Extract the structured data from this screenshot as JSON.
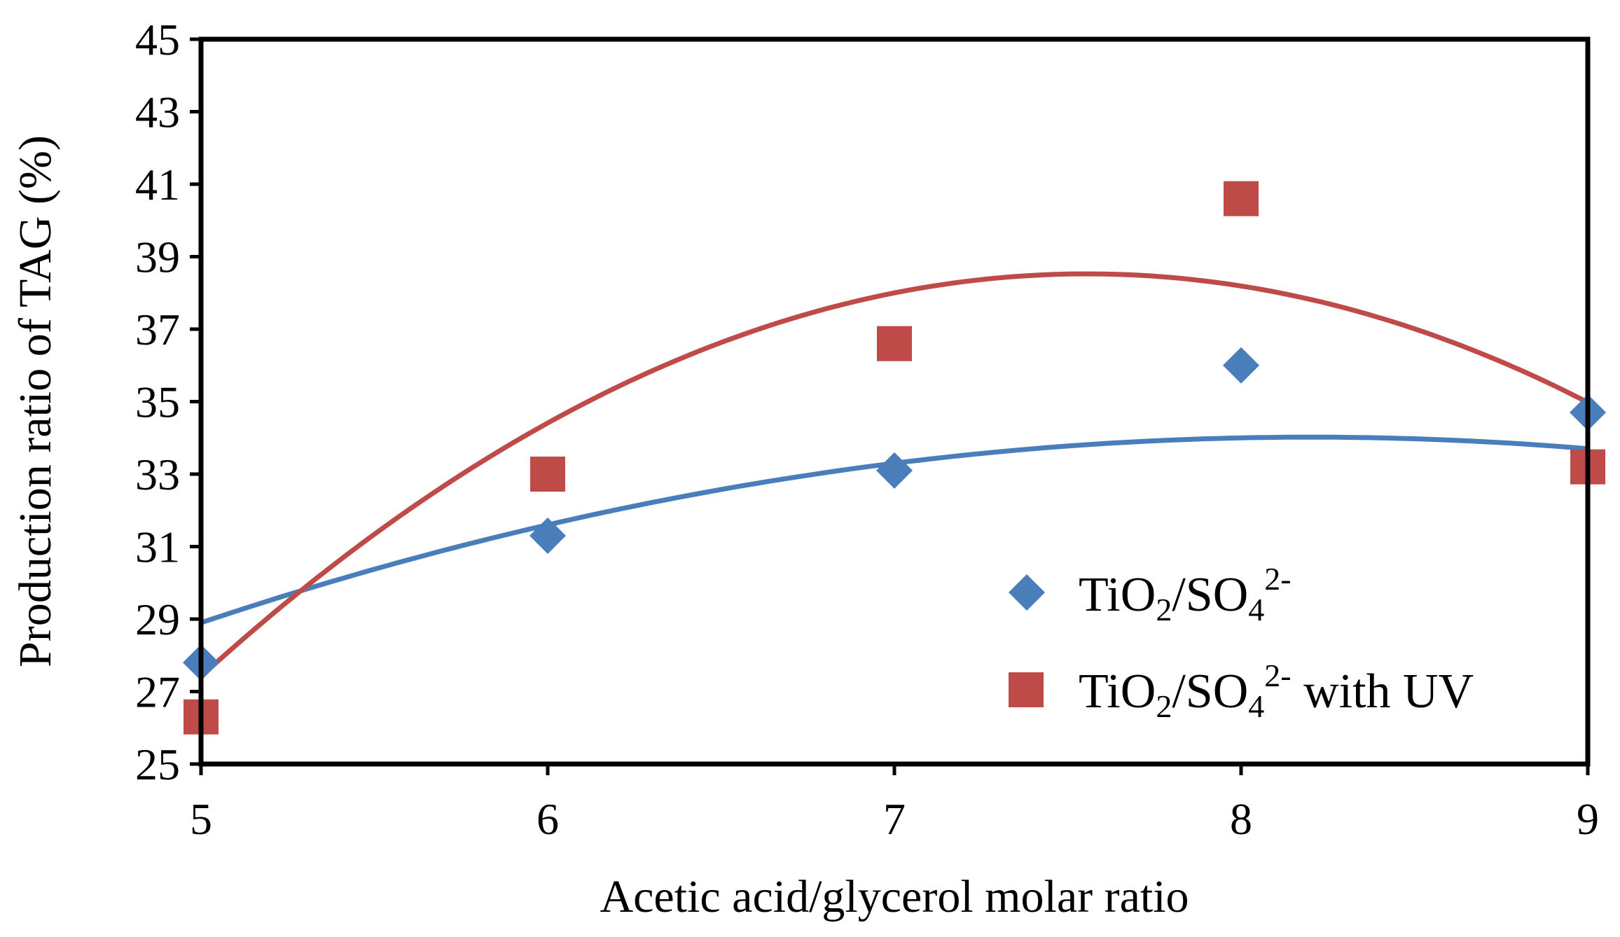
{
  "chart_data": {
    "type": "scatter",
    "title": "",
    "xlabel": "Acetic acid/glycerol molar ratio",
    "ylabel": "Production ratio of TAG (%)",
    "xlim": [
      5,
      9
    ],
    "ylim": [
      25,
      45
    ],
    "xticks": [
      5,
      6,
      7,
      8,
      9
    ],
    "yticks": [
      25,
      27,
      29,
      31,
      33,
      35,
      37,
      39,
      41,
      43,
      45
    ],
    "grid": false,
    "legend_position": "bottom-right",
    "series": [
      {
        "name": "TiO2/SO4 2-",
        "legend": {
          "a": "TiO",
          "b": "2",
          "c": "/SO",
          "d": "4",
          "e": "2-",
          "f": ""
        },
        "marker": "diamond",
        "color": "#4a7ebb",
        "x": [
          5,
          6,
          7,
          8,
          9
        ],
        "y": [
          27.8,
          31.3,
          33.1,
          36.0,
          34.7
        ],
        "trendline": {
          "type": "polynomial",
          "order": 2,
          "coeffs": [
            -0.5,
            8.2,
            0.4
          ]
        }
      },
      {
        "name": "TiO2/SO4 2- with UV",
        "legend": {
          "a": "TiO",
          "b": "2",
          "c": "/SO",
          "d": "4",
          "e": "2-",
          "f": " with UV"
        },
        "marker": "square",
        "color": "#be4b48",
        "x": [
          5,
          6,
          7,
          8,
          9
        ],
        "y": [
          26.3,
          33.0,
          36.6,
          40.6,
          33.2
        ],
        "trendline": {
          "type": "polynomial",
          "order": 2,
          "coeffs": [
            -1.7,
            25.69,
            -58.53
          ]
        }
      }
    ]
  }
}
